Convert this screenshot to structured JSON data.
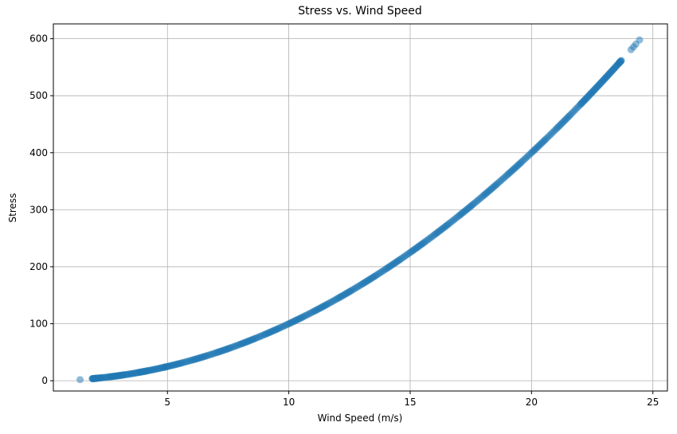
{
  "chart_data": {
    "type": "scatter",
    "title": "Stress vs. Wind Speed",
    "xlabel": "Wind Speed (m/s)",
    "ylabel": "Stress",
    "xlim": [
      0.3,
      25.6
    ],
    "ylim": [
      -18,
      626
    ],
    "xticks": [
      5,
      10,
      15,
      20,
      25
    ],
    "yticks": [
      0,
      100,
      200,
      300,
      400,
      500,
      600
    ],
    "grid": true,
    "relationship": "stress = wind_speed^2",
    "series": [
      {
        "color": "#1f77b4",
        "alpha": 0.5,
        "x": [
          1.4,
          1.9,
          2.0,
          2.1,
          2.3,
          2.6,
          2.8,
          3.0,
          3.2,
          3.5,
          3.8,
          4.0,
          4.2,
          4.5,
          4.8,
          5.0,
          5.3,
          5.6,
          6.0,
          6.3,
          6.6,
          7.0,
          7.3,
          7.6,
          8.0,
          8.3,
          8.6,
          9.0,
          9.3,
          9.6,
          10.0,
          10.3,
          10.6,
          11.0,
          11.3,
          11.6,
          12.0,
          12.3,
          12.6,
          13.0,
          13.3,
          13.6,
          14.0,
          14.3,
          14.6,
          15.0,
          15.3,
          15.6,
          16.0,
          16.3,
          16.6,
          17.0,
          17.3,
          17.6,
          18.0,
          18.3,
          18.6,
          19.0,
          19.3,
          19.6,
          20.0,
          20.3,
          20.6,
          21.0,
          21.3,
          21.6,
          22.0,
          22.2,
          22.4,
          22.6,
          22.8,
          23.0,
          23.2,
          23.4,
          23.6,
          23.7,
          24.1,
          24.2,
          24.3,
          24.45
        ],
        "y": [
          1.96,
          3.61,
          4.0,
          4.41,
          5.29,
          6.76,
          7.84,
          9.0,
          10.24,
          12.25,
          14.44,
          16.0,
          17.64,
          20.25,
          23.04,
          25.0,
          28.09,
          31.36,
          36.0,
          39.69,
          43.56,
          49.0,
          53.29,
          57.76,
          64.0,
          68.89,
          73.96,
          81.0,
          86.49,
          92.16,
          100.0,
          106.09,
          112.36,
          121.0,
          127.69,
          134.56,
          144.0,
          151.29,
          158.76,
          169.0,
          176.89,
          184.96,
          196.0,
          204.49,
          213.16,
          225.0,
          234.09,
          243.36,
          256.0,
          265.69,
          275.56,
          289.0,
          299.29,
          309.76,
          324.0,
          334.89,
          345.96,
          361.0,
          372.49,
          384.16,
          400.0,
          412.09,
          424.36,
          441.0,
          453.69,
          466.56,
          484.0,
          492.84,
          501.76,
          510.76,
          519.84,
          529.0,
          538.24,
          547.56,
          556.96,
          561.69,
          580.81,
          585.64,
          590.49,
          597.8
        ]
      }
    ]
  }
}
